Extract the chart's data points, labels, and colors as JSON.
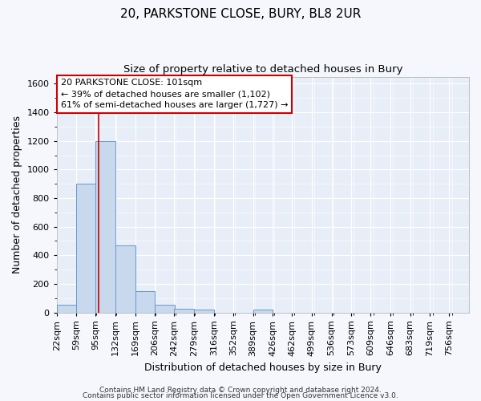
{
  "title": "20, PARKSTONE CLOSE, BURY, BL8 2UR",
  "subtitle": "Size of property relative to detached houses in Bury",
  "xlabel": "Distribution of detached houses by size in Bury",
  "ylabel": "Number of detached properties",
  "bin_labels": [
    "22sqm",
    "59sqm",
    "95sqm",
    "132sqm",
    "169sqm",
    "206sqm",
    "242sqm",
    "279sqm",
    "316sqm",
    "352sqm",
    "389sqm",
    "426sqm",
    "462sqm",
    "499sqm",
    "536sqm",
    "573sqm",
    "609sqm",
    "646sqm",
    "683sqm",
    "719sqm",
    "756sqm"
  ],
  "bin_edges": [
    22,
    59,
    95,
    132,
    169,
    206,
    242,
    279,
    316,
    352,
    389,
    426,
    462,
    499,
    536,
    573,
    609,
    646,
    683,
    719,
    756
  ],
  "bar_heights": [
    55,
    900,
    1200,
    470,
    150,
    55,
    25,
    20,
    0,
    0,
    20,
    0,
    0,
    0,
    0,
    0,
    0,
    0,
    0,
    0
  ],
  "bar_color": "#c8d8ed",
  "bar_edge_color": "#6699cc",
  "property_size": 101,
  "annotation_line1": "20 PARKSTONE CLOSE: 101sqm",
  "annotation_line2": "← 39% of detached houses are smaller (1,102)",
  "annotation_line3": "61% of semi-detached houses are larger (1,727) →",
  "ylim": [
    0,
    1650
  ],
  "yticks": [
    0,
    200,
    400,
    600,
    800,
    1000,
    1200,
    1400,
    1600
  ],
  "footer1": "Contains HM Land Registry data © Crown copyright and database right 2024.",
  "footer2": "Contains public sector information licensed under the Open Government Licence v3.0.",
  "plot_bg": "#e8eef8",
  "fig_bg": "#f5f7fc",
  "grid_color": "#ffffff",
  "annotation_box_bg": "#ffffff",
  "annotation_box_edge": "#cc0000",
  "red_line_color": "#cc0000",
  "title_fontsize": 11,
  "subtitle_fontsize": 9.5,
  "label_fontsize": 9,
  "tick_fontsize": 8,
  "annot_fontsize": 8,
  "footer_fontsize": 6.5
}
